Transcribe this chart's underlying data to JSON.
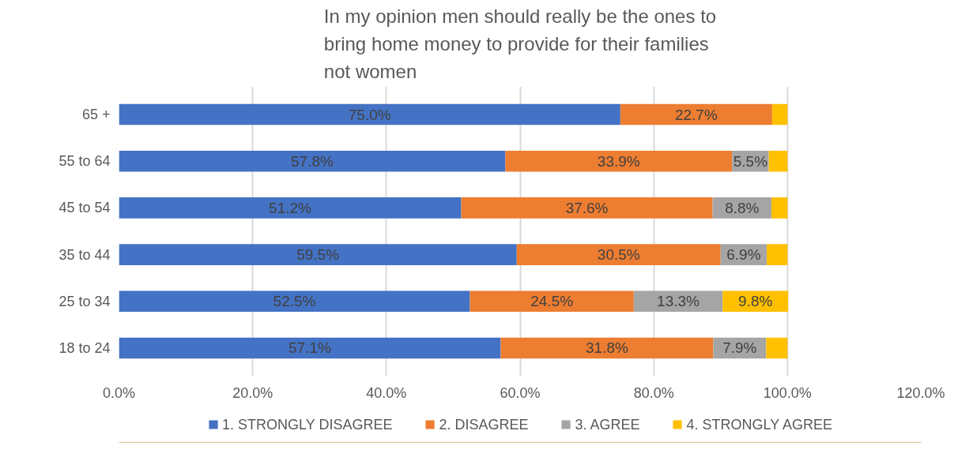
{
  "chart_data": {
    "type": "bar",
    "orientation": "horizontal",
    "stacked": true,
    "title": "In my opinion men should really be the ones to bring home money to provide for their families not women",
    "categories": [
      "65 +",
      "55 to 64",
      "45 to 54",
      "35 to 44",
      "25 to 34",
      "18 to 24"
    ],
    "series": [
      {
        "name": "1. STRONGLY DISAGREE",
        "color": "#4472c4",
        "values": [
          75.0,
          57.8,
          51.2,
          59.5,
          52.5,
          57.1
        ],
        "value_labels": [
          "75.0%",
          "57.8%",
          "51.2%",
          "59.5%",
          "52.5%",
          "57.1%"
        ]
      },
      {
        "name": "2. DISAGREE",
        "color": "#ed7d31",
        "values": [
          22.7,
          33.9,
          37.6,
          30.5,
          24.5,
          31.8
        ],
        "value_labels": [
          "22.7%",
          "33.9%",
          "37.6%",
          "30.5%",
          "24.5%",
          "31.8%"
        ]
      },
      {
        "name": "3. AGREE",
        "color": "#a5a5a5",
        "values": [
          0,
          5.5,
          8.8,
          6.9,
          13.3,
          7.9
        ],
        "value_labels": [
          null,
          "5.5%",
          "8.8%",
          "6.9%",
          "13.3%",
          "7.9%"
        ]
      },
      {
        "name": "4. STRONGLY AGREE",
        "color": "#ffc000",
        "values": [
          2.3,
          2.8,
          2.4,
          3.1,
          9.8,
          3.2
        ],
        "value_labels": [
          null,
          null,
          null,
          null,
          "9.8%",
          null
        ]
      }
    ],
    "xlim": [
      0,
      120
    ],
    "xticks": [
      {
        "value": 0,
        "label": "0.0%"
      },
      {
        "value": 20,
        "label": "20.0%"
      },
      {
        "value": 40,
        "label": "40.0%"
      },
      {
        "value": 60,
        "label": "60.0%"
      },
      {
        "value": 80,
        "label": "80.0%"
      },
      {
        "value": 100,
        "label": "100.0%"
      },
      {
        "value": 120,
        "label": "120.0%"
      }
    ],
    "grid": "x",
    "legend": "bottom"
  }
}
